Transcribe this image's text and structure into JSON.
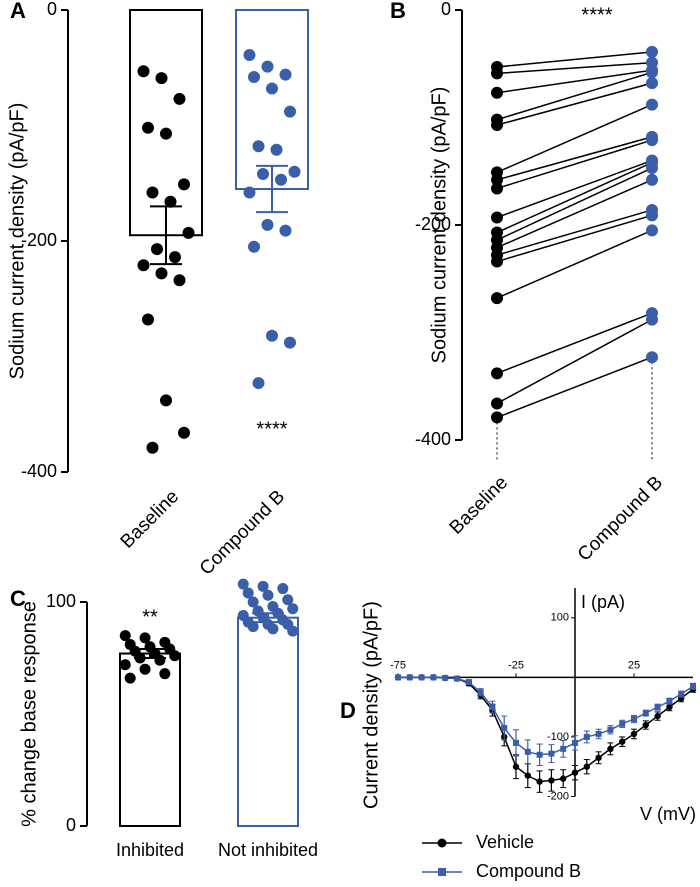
{
  "chart_data": [
    {
      "type": "bar",
      "panel": "A",
      "ylabel": "Sodium current density (pA/pF)",
      "categories": [
        "Baseline",
        "Compound B"
      ],
      "values": [
        -195,
        -155
      ],
      "errors": [
        25,
        20
      ],
      "colors": [
        "#000000",
        "#3a5ea8"
      ],
      "points": [
        [
          -53,
          -59,
          -77,
          -102,
          -107,
          -151,
          -158,
          -166,
          -193,
          -207,
          -214,
          -221,
          -228,
          -234,
          -268,
          -338,
          -366,
          -379
        ],
        [
          -39,
          -49,
          -56,
          -58,
          -68,
          -88,
          -118,
          -121,
          -140,
          -142,
          -147,
          -158,
          -186,
          -191,
          -205,
          -282,
          -288,
          -323
        ]
      ],
      "annotations": [
        null,
        "****"
      ],
      "ylim": [
        -400,
        0
      ],
      "yticks": [
        -400,
        -200,
        0
      ]
    },
    {
      "type": "paired",
      "panel": "B",
      "ylabel": "Sodium current density (pA/pF)",
      "categories": [
        "Baseline",
        "Compound B"
      ],
      "colors": [
        "#000000",
        "#3a5ea8"
      ],
      "points": [
        [
          -53,
          -59,
          -77,
          -102,
          -107,
          -151,
          -158,
          -166,
          -193,
          -207,
          -214,
          -221,
          -228,
          -234,
          -268,
          -338,
          -366,
          -379
        ],
        [
          -39,
          -49,
          -56,
          -58,
          -68,
          -88,
          -118,
          -121,
          -140,
          -142,
          -147,
          -158,
          -186,
          -191,
          -205,
          -282,
          -288,
          -323
        ]
      ],
      "annotation": "****",
      "ylim": [
        -400,
        0
      ],
      "yticks": [
        -400,
        -200,
        0
      ]
    },
    {
      "type": "bar",
      "panel": "C",
      "ylabel": "% change base response",
      "categories": [
        "Inhibited",
        "Not inhibited"
      ],
      "values": [
        77,
        93
      ],
      "errors": [
        2,
        2
      ],
      "colors": [
        "#000000",
        "#3a5ea8"
      ],
      "points": [
        [
          85,
          84,
          82,
          81,
          80,
          79,
          78,
          77,
          76,
          75,
          74,
          72,
          70,
          68,
          66
        ],
        [
          108,
          107,
          106,
          104,
          103,
          101,
          100,
          98,
          97,
          96,
          95,
          94,
          93,
          92,
          91,
          90,
          90,
          89,
          88,
          87
        ]
      ],
      "annotations": [
        "**",
        null
      ],
      "ylim": [
        0,
        100
      ],
      "yticks": [
        0,
        100
      ]
    },
    {
      "type": "line",
      "panel": "D",
      "ylabel": "Current density (pA/pF)",
      "xlabel": "V (mV)",
      "y_axis_title": "I (pA)",
      "x": [
        -75,
        -70,
        -65,
        -60,
        -55,
        -50,
        -45,
        -40,
        -35,
        -30,
        -25,
        -20,
        -15,
        -10,
        -5,
        0,
        5,
        10,
        15,
        20,
        25,
        30,
        35,
        40,
        45,
        50
      ],
      "series": [
        {
          "name": "Vehicle",
          "color": "#000000",
          "marker": "circle",
          "values": [
            0,
            0,
            0,
            0,
            -1,
            -2,
            -10,
            -30,
            -55,
            -100,
            -150,
            -165,
            -175,
            -173,
            -170,
            -160,
            -150,
            -135,
            -120,
            -108,
            -95,
            -80,
            -65,
            -50,
            -35,
            -20
          ],
          "errors": [
            0,
            0,
            0,
            0,
            1,
            2,
            4,
            6,
            10,
            15,
            20,
            20,
            18,
            18,
            15,
            12,
            12,
            10,
            10,
            8,
            8,
            7,
            7,
            6,
            6,
            5
          ]
        },
        {
          "name": "Compound B",
          "color": "#3a5ea8",
          "marker": "square",
          "values": [
            0,
            0,
            0,
            0,
            -1,
            -2,
            -8,
            -25,
            -50,
            -85,
            -110,
            -125,
            -130,
            -128,
            -120,
            -110,
            -100,
            -95,
            -88,
            -78,
            -70,
            -60,
            -50,
            -40,
            -28,
            -15
          ],
          "errors": [
            0,
            0,
            0,
            0,
            1,
            2,
            4,
            6,
            10,
            20,
            22,
            20,
            18,
            15,
            14,
            12,
            10,
            8,
            7,
            6,
            6,
            5,
            5,
            5,
            5,
            5
          ]
        }
      ],
      "xlim": [
        -75,
        50
      ],
      "xticks": [
        -75,
        -25,
        25
      ],
      "ylim": [
        -200,
        150
      ],
      "yticks": [
        -200,
        -100,
        100
      ]
    }
  ]
}
